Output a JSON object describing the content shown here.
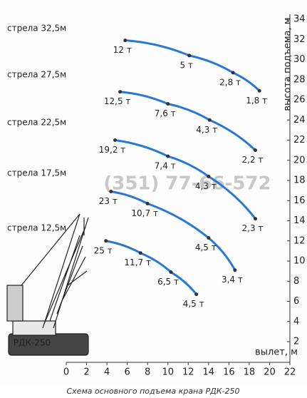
{
  "chart_data": {
    "type": "line",
    "xlabel": "вылет, м",
    "ylabel": "высота подъема, м",
    "caption": "Схема основного подъема крана РДК-250",
    "watermark": "(351) 77-66-572",
    "crane_label": "РДК-250",
    "xlim": [
      0,
      22
    ],
    "xticks": [
      0,
      2,
      4,
      6,
      8,
      10,
      12,
      14,
      16,
      18,
      20,
      22
    ],
    "ylim": [
      2,
      34
    ],
    "yticks": [
      2,
      4,
      6,
      8,
      10,
      12,
      14,
      16,
      18,
      20,
      22,
      24,
      26,
      28,
      30,
      32,
      34
    ],
    "color": "#2a78d6",
    "series": [
      {
        "name": "стрела 32,5м",
        "x": [
          5.8,
          12.1,
          16.4,
          19.0
        ],
        "values": [
          31.9,
          30.4,
          28.7,
          26.9
        ],
        "loads": [
          "12 т",
          "5 т",
          "2,8 т",
          "1,8 т"
        ]
      },
      {
        "name": "стрела 27,5м",
        "x": [
          5.3,
          10.0,
          14.1,
          18.6
        ],
        "values": [
          26.8,
          25.6,
          24.0,
          21.0
        ],
        "loads": [
          "12,5 т",
          "7,6 т",
          "4,3 т",
          "2,2 т"
        ]
      },
      {
        "name": "стрела 22,5м",
        "x": [
          4.8,
          10.0,
          14.0,
          18.6
        ],
        "values": [
          22.0,
          20.4,
          18.4,
          14.2
        ],
        "loads": [
          "19,2 т",
          "7,4 т",
          "4,3 т",
          "2,3 т"
        ]
      },
      {
        "name": "стрела 17,5м",
        "x": [
          4.4,
          8.0,
          14.0,
          16.6
        ],
        "values": [
          16.9,
          15.7,
          12.3,
          9.1
        ],
        "loads": [
          "23 т",
          "10,7 т",
          "4,5 т",
          "3,4 т"
        ]
      },
      {
        "name": "стрела 12,5м",
        "x": [
          3.9,
          7.3,
          10.3,
          12.8
        ],
        "values": [
          12.0,
          10.8,
          8.9,
          6.7
        ],
        "loads": [
          "25 т",
          "11,7 т",
          "6,5 т",
          "4,5 т"
        ]
      }
    ]
  }
}
